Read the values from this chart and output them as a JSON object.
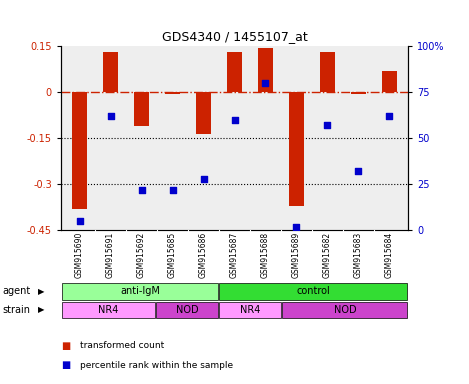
{
  "title": "GDS4340 / 1455107_at",
  "samples": [
    "GSM915690",
    "GSM915691",
    "GSM915692",
    "GSM915685",
    "GSM915686",
    "GSM915687",
    "GSM915688",
    "GSM915689",
    "GSM915682",
    "GSM915683",
    "GSM915684"
  ],
  "transformed_count": [
    -0.38,
    0.13,
    -0.11,
    -0.005,
    -0.135,
    0.13,
    0.145,
    -0.37,
    0.13,
    -0.005,
    0.07
  ],
  "percentile_rank": [
    5,
    62,
    22,
    22,
    28,
    60,
    80,
    2,
    57,
    32,
    62
  ],
  "ylim_left": [
    -0.45,
    0.15
  ],
  "ylim_right": [
    0,
    100
  ],
  "yticks_left": [
    0.15,
    0.0,
    -0.15,
    -0.3,
    -0.45
  ],
  "yticks_right": [
    100,
    75,
    50,
    25,
    0
  ],
  "bar_color": "#cc2200",
  "dot_color": "#0000cc",
  "hline_y": 0.0,
  "dotted_lines": [
    -0.15,
    -0.3
  ],
  "agent_groups": [
    {
      "label": "anti-IgM",
      "start": 0,
      "end": 5,
      "color": "#99ff99"
    },
    {
      "label": "control",
      "start": 5,
      "end": 11,
      "color": "#33dd33"
    }
  ],
  "strain_groups": [
    {
      "label": "NR4",
      "start": 0,
      "end": 3,
      "color": "#ff99ff"
    },
    {
      "label": "NOD",
      "start": 3,
      "end": 5,
      "color": "#cc44cc"
    },
    {
      "label": "NR4",
      "start": 5,
      "end": 7,
      "color": "#ff99ff"
    },
    {
      "label": "NOD",
      "start": 7,
      "end": 11,
      "color": "#cc44cc"
    }
  ],
  "legend_items": [
    {
      "label": "transformed count",
      "color": "#cc2200"
    },
    {
      "label": "percentile rank within the sample",
      "color": "#0000cc"
    }
  ],
  "background_color": "#ffffff",
  "plot_bg_color": "#eeeeee",
  "tick_area_color": "#cccccc"
}
